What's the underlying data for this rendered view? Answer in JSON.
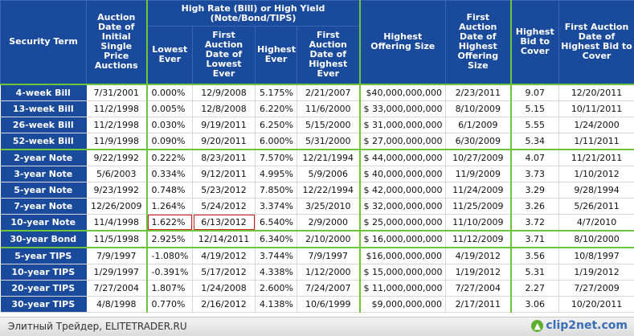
{
  "headers": {
    "security_term": "Security Term",
    "initial_single_price": "Auction Date of Initial Single Price Auctions",
    "group_high_rate": "High Rate (Bill) or High Yield (Note/Bond/TIPS)",
    "lowest_ever": "Lowest Ever",
    "first_date_lowest": "First Auction Date of Lowest Ever",
    "highest_ever": "Highest Ever",
    "first_date_highest": "First Auction Date of Highest Ever",
    "highest_offering": "Highest Offering Size",
    "first_date_offering": "First Auction Date of Highest Offering Size",
    "highest_btc": "Highest Bid to Cover",
    "first_date_btc": "First Auction Date of Highest Bid to Cover"
  },
  "rows": [
    {
      "term": "4-week Bill",
      "initial": "7/31/2001",
      "low": "0.000%",
      "low_date": "12/9/2008",
      "high": "5.175%",
      "high_date": "2/21/2007",
      "offer": "$40,000,000,000",
      "offer_date": "2/23/2011",
      "btc": "9.07",
      "btc_date": "12/20/2011"
    },
    {
      "term": "13-week Bill",
      "initial": "11/2/1998",
      "low": "0.005%",
      "low_date": "12/8/2008",
      "high": "6.220%",
      "high_date": "11/6/2000",
      "offer": "$ 33,000,000,000",
      "offer_date": "8/10/2009",
      "btc": "5.15",
      "btc_date": "10/11/2011"
    },
    {
      "term": "26-week Bill",
      "initial": "11/2/1998",
      "low": "0.030%",
      "low_date": "9/19/2011",
      "high": "6.250%",
      "high_date": "5/15/2000",
      "offer": "$ 31,000,000,000",
      "offer_date": "6/1/2009",
      "btc": "5.55",
      "btc_date": "1/24/2000"
    },
    {
      "term": "52-week Bill",
      "initial": "11/9/1998",
      "low": "0.090%",
      "low_date": "9/20/2011",
      "high": "6.000%",
      "high_date": "5/31/2000",
      "offer": "$ 27,000,000,000",
      "offer_date": "6/30/2009",
      "btc": "5.34",
      "btc_date": "1/11/2011"
    },
    {
      "term": "2-year Note",
      "initial": "9/22/1992",
      "low": "0.222%",
      "low_date": "8/23/2011",
      "high": "7.570%",
      "high_date": "12/21/1994",
      "offer": "$ 44,000,000,000",
      "offer_date": "10/27/2009",
      "btc": "4.07",
      "btc_date": "11/21/2011"
    },
    {
      "term": "3-year Note",
      "initial": "5/6/2003",
      "low": "0.334%",
      "low_date": "9/12/2011",
      "high": "4.995%",
      "high_date": "5/9/2006",
      "offer": "$ 40,000,000,000",
      "offer_date": "11/9/2009",
      "btc": "3.73",
      "btc_date": "1/10/2012"
    },
    {
      "term": "5-year Note",
      "initial": "9/23/1992",
      "low": "0.748%",
      "low_date": "5/23/2012",
      "high": "7.850%",
      "high_date": "12/22/1994",
      "offer": "$ 42,000,000,000",
      "offer_date": "11/24/2009",
      "btc": "3.29",
      "btc_date": "9/28/1994"
    },
    {
      "term": "7-year Note",
      "initial": "12/26/2009",
      "low": "1.264%",
      "low_date": "5/24/2012",
      "high": "3.374%",
      "high_date": "3/25/2010",
      "offer": "$ 32,000,000,000",
      "offer_date": "11/25/2009",
      "btc": "3.26",
      "btc_date": "5/26/2011"
    },
    {
      "term": "10-year Note",
      "initial": "11/4/1998",
      "low": "1.622%",
      "low_date": "6/13/2012",
      "high": "6.540%",
      "high_date": "2/9/2000",
      "offer": "$ 25,000,000,000",
      "offer_date": "11/10/2009",
      "btc": "3.72",
      "btc_date": "4/7/2010"
    },
    {
      "term": "30-year Bond",
      "initial": "11/5/1998",
      "low": "2.925%",
      "low_date": "12/14/2011",
      "high": "6.340%",
      "high_date": "2/10/2000",
      "offer": "$ 16,000,000,000",
      "offer_date": "11/12/2009",
      "btc": "3.71",
      "btc_date": "8/10/2000"
    },
    {
      "term": "5-year TIPS",
      "initial": "7/9/1997",
      "low": "-1.080%",
      "low_date": "4/19/2012",
      "high": "3.744%",
      "high_date": "7/9/1997",
      "offer": "$16,000,000,000",
      "offer_date": "4/19/2012",
      "btc": "3.56",
      "btc_date": "10/8/1997"
    },
    {
      "term": "10-year TIPS",
      "initial": "1/29/1997",
      "low": "-0.391%",
      "low_date": "5/17/2012",
      "high": "4.338%",
      "high_date": "1/12/2000",
      "offer": "$ 15,000,000,000",
      "offer_date": "1/19/2012",
      "btc": "5.31",
      "btc_date": "1/19/2012"
    },
    {
      "term": "20-year TIPS",
      "initial": "7/27/2004",
      "low": "1.807%",
      "low_date": "1/24/2008",
      "high": "2.600%",
      "high_date": "7/24/2007",
      "offer": "$ 11,000,000,000",
      "offer_date": "7/27/2004",
      "btc": "2.27",
      "btc_date": "7/27/2009"
    },
    {
      "term": "30-year TIPS",
      "initial": "4/8/1998",
      "low": "0.770%",
      "low_date": "2/16/2012",
      "high": "4.138%",
      "high_date": "10/6/1999",
      "offer": "$9,000,000,000",
      "offer_date": "2/17/2011",
      "btc": "3.06",
      "btc_date": "10/20/2011"
    }
  ],
  "footer": {
    "source_text": "Элитный Трейдер, ELITETRADER.RU",
    "logo_text": "clip2net.com",
    "logo_icon": "arrow-up-icon"
  },
  "colors": {
    "header_bg": "#1a4a9b",
    "group_border": "#6ec43a",
    "highlight_outline": "#d02020"
  }
}
